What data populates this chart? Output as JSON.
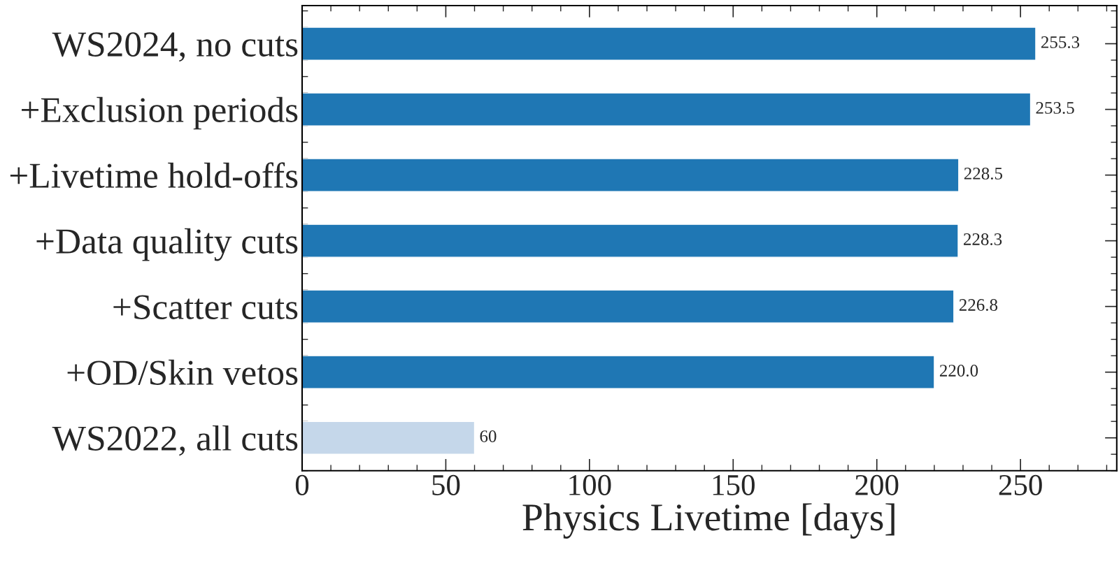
{
  "chart_data": {
    "type": "bar",
    "orientation": "horizontal",
    "xlabel": "Physics Livetime [days]",
    "categories": [
      "WS2024, no cuts",
      "+Exclusion periods",
      "+Livetime hold-offs",
      "+Data quality cuts",
      "+Scatter cuts",
      "+OD/Skin vetos",
      "WS2022, all cuts"
    ],
    "values": [
      255.3,
      253.5,
      228.5,
      228.3,
      226.8,
      220.0,
      60
    ],
    "colors": [
      "#1f77b4",
      "#1f77b4",
      "#1f77b4",
      "#1f77b4",
      "#1f77b4",
      "#1f77b4",
      "#c5d7ea"
    ],
    "xlim": [
      0,
      283.5
    ],
    "xticks": [
      0,
      50,
      100,
      150,
      200,
      250
    ],
    "value_labels": [
      "255.3",
      "253.5",
      "228.5",
      "228.3",
      "226.8",
      "220.0",
      "60"
    ],
    "grid": false,
    "legend": false
  }
}
